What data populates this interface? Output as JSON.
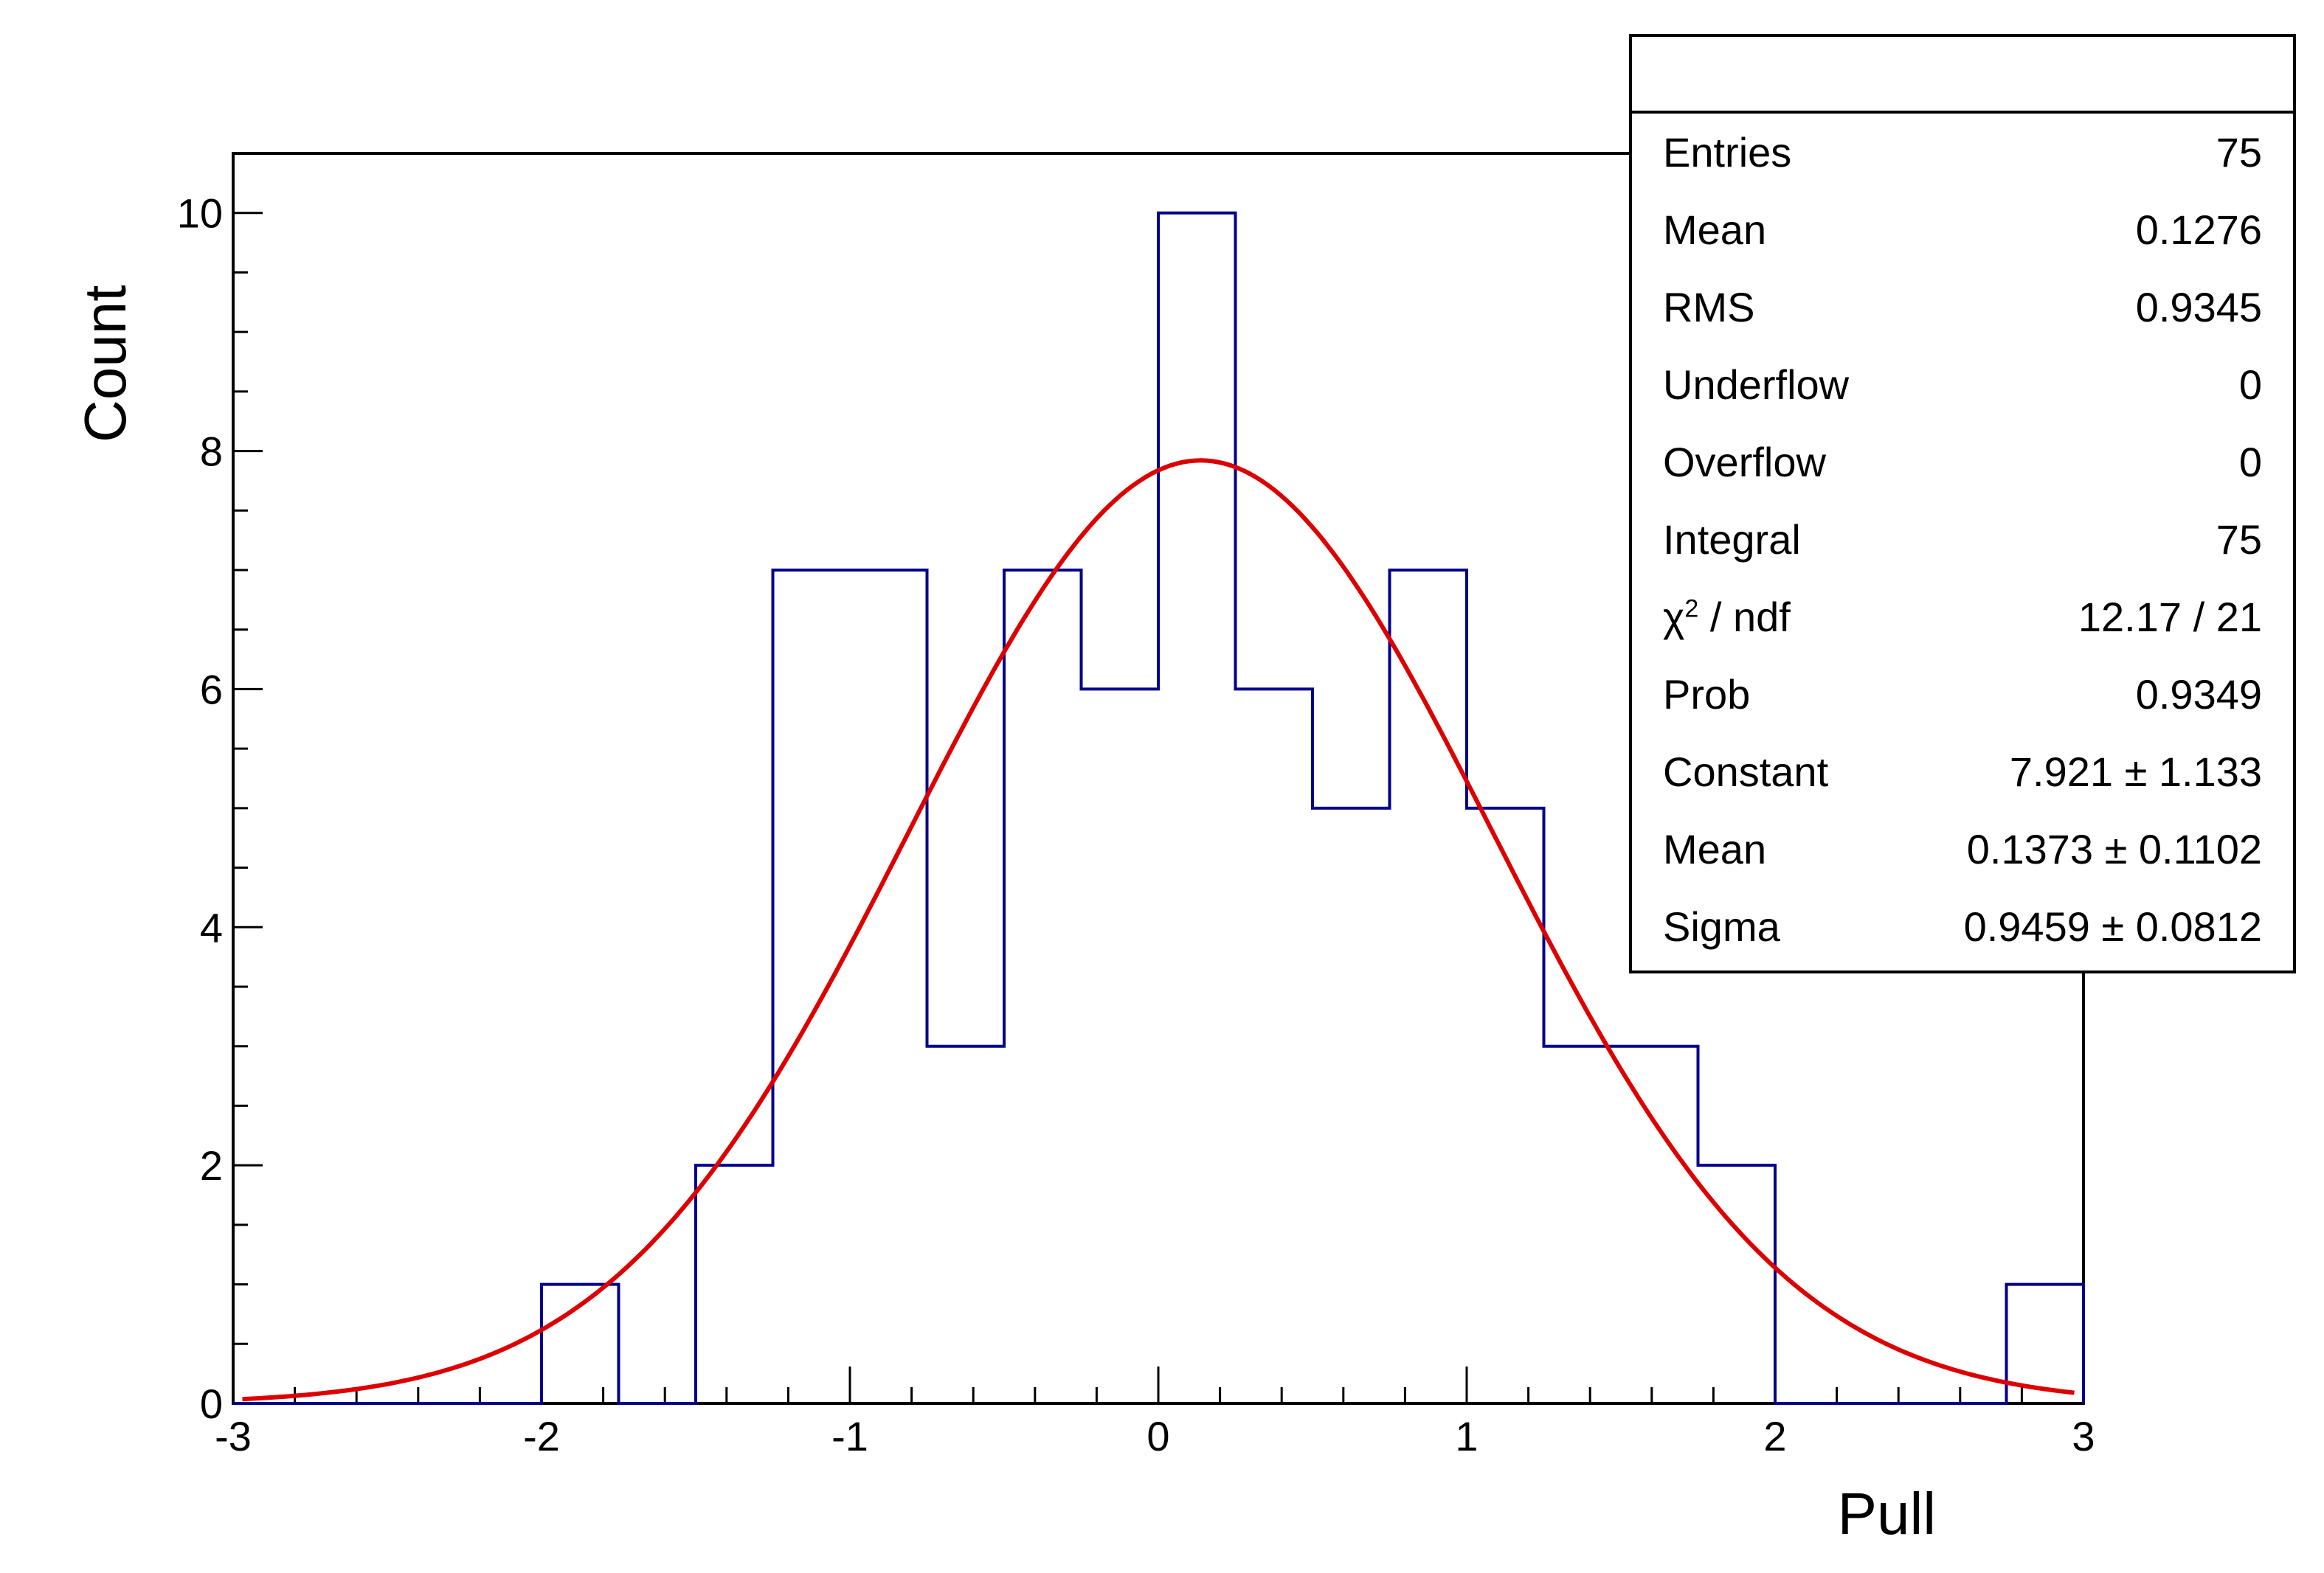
{
  "chart_data": {
    "type": "bar",
    "histogram": true,
    "bin_edges": [
      -3,
      -2.75,
      -2.5,
      -2.25,
      -2,
      -1.75,
      -1.5,
      -1.25,
      -1,
      -0.75,
      -0.5,
      -0.25,
      0,
      0.25,
      0.5,
      0.75,
      1,
      1.25,
      1.5,
      1.75,
      2,
      2.25,
      2.5,
      2.75,
      3
    ],
    "values": [
      0,
      0,
      0,
      0,
      1,
      0,
      2,
      7,
      7,
      3,
      7,
      6,
      10,
      6,
      5,
      7,
      5,
      3,
      3,
      2,
      0,
      0,
      0,
      1
    ],
    "xlabel": "Pull",
    "ylabel": "Count",
    "xlim": [
      -3,
      3
    ],
    "ylim": [
      0,
      10.5
    ],
    "x_ticks": [
      -3,
      -2,
      -1,
      0,
      1,
      2,
      3
    ],
    "x_tick_labels": [
      "-3",
      "-2",
      "-1",
      "0",
      "1",
      "2",
      "3"
    ],
    "y_ticks": [
      0,
      2,
      4,
      6,
      8,
      10
    ],
    "y_tick_labels": [
      "0",
      "2",
      "4",
      "6",
      "8",
      "10"
    ],
    "grid": false,
    "fit": {
      "function": "gaus",
      "constant": 7.921,
      "mean": 0.1373,
      "sigma": 0.9459
    },
    "colors": {
      "histogram": "#00008b",
      "fit": "#dd0000"
    }
  },
  "stats_box": {
    "rows": [
      {
        "label": "Entries",
        "value": "75"
      },
      {
        "label": "Mean",
        "value": "0.1276"
      },
      {
        "label": "RMS",
        "value": "0.9345"
      },
      {
        "label": "Underflow",
        "value": "0"
      },
      {
        "label": "Overflow",
        "value": "0"
      },
      {
        "label": "Integral",
        "value": "75"
      },
      {
        "label": "χ / ndf",
        "label_base": "χ",
        "label_sup": "2",
        "label_rest": " / ndf",
        "value": "12.17 / 21"
      },
      {
        "label": "Prob",
        "value": "0.9349"
      },
      {
        "label": "Constant",
        "value": "7.921 ± 1.133"
      },
      {
        "label": "Mean",
        "value": "0.1373 ± 0.1102"
      },
      {
        "label": "Sigma",
        "value": "0.9459 ± 0.0812"
      }
    ]
  }
}
